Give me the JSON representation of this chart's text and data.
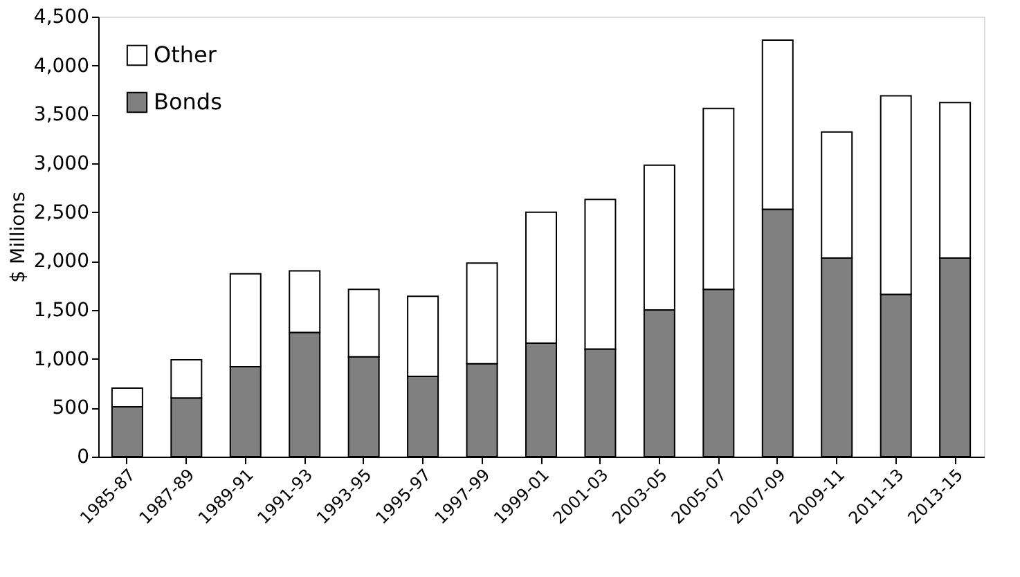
{
  "chart_data": {
    "type": "bar",
    "stacked": true,
    "ylabel": "$ Millions",
    "categories": [
      "1985-87",
      "1987-89",
      "1989-91",
      "1991-93",
      "1993-95",
      "1995-97",
      "1997-99",
      "1999-01",
      "2001-03",
      "2003-05",
      "2005-07",
      "2007-09",
      "2009-11",
      "2011-13",
      "2013-15"
    ],
    "series": [
      {
        "name": "Bonds",
        "color": "#808080",
        "values": [
          510,
          600,
          920,
          1270,
          1020,
          820,
          950,
          1160,
          1100,
          1500,
          1710,
          2530,
          2030,
          1660,
          2030
        ]
      },
      {
        "name": "Other",
        "color": "#ffffff",
        "values": [
          190,
          390,
          950,
          630,
          690,
          820,
          1030,
          1340,
          1530,
          1480,
          1850,
          1730,
          1290,
          2030,
          1590
        ]
      }
    ],
    "ylim": [
      0,
      4500
    ],
    "yticks": [
      0,
      500,
      {
        "value": 1000,
        "label": "1,000"
      },
      {
        "value": 1500,
        "label": "1,500"
      },
      {
        "value": 2000,
        "label": "2,000"
      },
      {
        "value": 2500,
        "label": "2,500"
      },
      {
        "value": 3000,
        "label": "3,000"
      },
      {
        "value": 3500,
        "label": "3,500"
      },
      {
        "value": 4000,
        "label": "4,000"
      },
      {
        "value": 4500,
        "label": "4,500"
      }
    ],
    "grid": false,
    "legend": "top left"
  }
}
